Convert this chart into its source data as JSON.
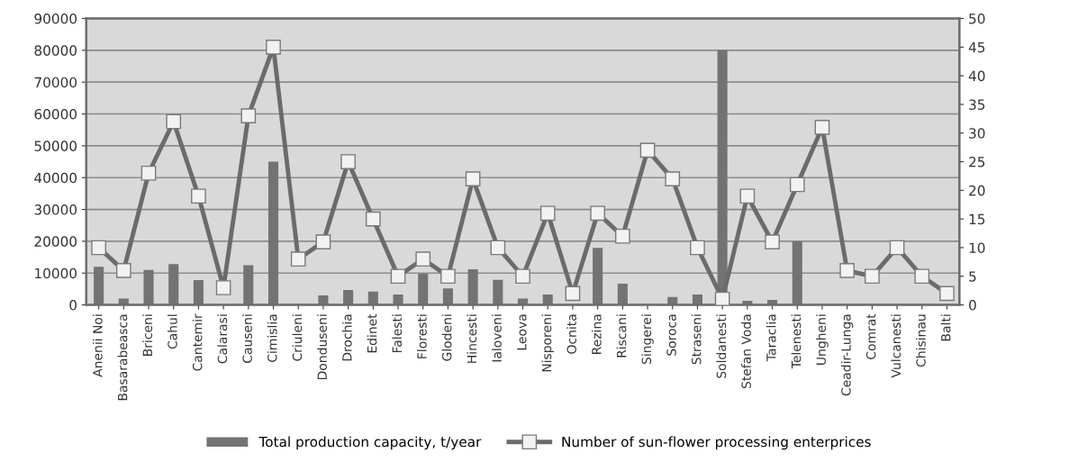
{
  "chart_data": {
    "type": "bar",
    "categories": [
      "Anenii Noi",
      "Basarabeasca",
      "Briceni",
      "Cahul",
      "Cantemir",
      "Calarasi",
      "Causeni",
      "Cimislia",
      "Criuleni",
      "Donduseni",
      "Drochia",
      "Edinet",
      "Falesti",
      "Floresti",
      "Glodeni",
      "Hincesti",
      "Ialoveni",
      "Leova",
      "Nisporeni",
      "Ocnita",
      "Rezina",
      "Riscani",
      "Singerei",
      "Soroca",
      "Straseni",
      "Soldanesti",
      "Stefan Voda",
      "Taraclia",
      "Telenesti",
      "Ungheni",
      "Ceadir-Lunga",
      "Comrat",
      "Vulcanesti",
      "Chisinau",
      "Balti"
    ],
    "series": [
      {
        "name": "Total production capacity, t/year",
        "color": "#737373",
        "values": [
          12000,
          2000,
          11000,
          12800,
          7800,
          0,
          12500,
          45000,
          0,
          3000,
          4700,
          4200,
          3300,
          9800,
          5200,
          11200,
          7900,
          2000,
          3300,
          0,
          17900,
          6700,
          0,
          2500,
          3300,
          80000,
          1300,
          1600,
          20000,
          0,
          0,
          0,
          0,
          0,
          0
        ]
      },
      {
        "name": "Number of sun-flower processing enterprices",
        "type": "line",
        "axis": "y2",
        "color": "#6b6b6b",
        "marker": "square",
        "values": [
          10,
          6,
          23,
          32,
          19,
          3,
          33,
          45,
          8,
          11,
          25,
          15,
          5,
          8,
          5,
          22,
          10,
          5,
          16,
          2,
          16,
          12,
          27,
          22,
          10,
          1,
          19,
          11,
          21,
          31,
          6,
          5,
          10,
          5,
          2
        ]
      }
    ],
    "ylim": [
      0,
      90000
    ],
    "yticks": [
      0,
      10000,
      20000,
      30000,
      40000,
      50000,
      60000,
      70000,
      80000,
      90000
    ],
    "y2lim": [
      0,
      50
    ],
    "y2ticks": [
      0,
      5,
      10,
      15,
      20,
      25,
      30,
      35,
      40,
      45,
      50
    ],
    "grid": "y",
    "legend": "bottom"
  }
}
